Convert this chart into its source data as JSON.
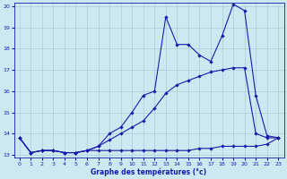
{
  "background_color": "#cce8f0",
  "grid_color": "#b0cdd8",
  "line_color": "#1a1aaa",
  "xlabel": "Graphe des températures (°c)",
  "xlim": [
    -0.5,
    23.5
  ],
  "ylim": [
    12.85,
    20.15
  ],
  "yticks": [
    13,
    14,
    15,
    16,
    17,
    18,
    19,
    20
  ],
  "xticks": [
    0,
    1,
    2,
    3,
    4,
    5,
    6,
    7,
    8,
    9,
    10,
    11,
    12,
    13,
    14,
    15,
    16,
    17,
    18,
    19,
    20,
    21,
    22,
    23
  ],
  "line_min_x": [
    0,
    1,
    2,
    3,
    4,
    5,
    6,
    7,
    8,
    9,
    10,
    11,
    12,
    13,
    14,
    15,
    16,
    17,
    18,
    19,
    20,
    21,
    22,
    23
  ],
  "line_min_y": [
    13.8,
    13.1,
    13.2,
    13.2,
    13.1,
    13.1,
    13.2,
    13.2,
    13.2,
    13.2,
    13.2,
    13.2,
    13.2,
    13.2,
    13.2,
    13.2,
    13.3,
    13.3,
    13.4,
    13.4,
    13.4,
    13.4,
    13.5,
    13.8
  ],
  "line_max_x": [
    0,
    1,
    2,
    3,
    4,
    5,
    6,
    7,
    8,
    9,
    10,
    11,
    12,
    13,
    14,
    15,
    16,
    17,
    18,
    19,
    20,
    21,
    22,
    23
  ],
  "line_max_y": [
    13.8,
    13.1,
    13.2,
    13.2,
    13.1,
    13.1,
    13.2,
    13.4,
    13.7,
    14.0,
    14.3,
    14.6,
    15.2,
    15.9,
    16.3,
    16.5,
    16.7,
    16.9,
    17.0,
    17.1,
    17.1,
    14.0,
    13.8,
    13.8
  ],
  "line_cur_x": [
    0,
    1,
    2,
    3,
    4,
    5,
    6,
    7,
    8,
    9,
    10,
    11,
    12,
    13,
    14,
    15,
    16,
    17,
    18,
    19,
    20,
    21,
    22,
    23
  ],
  "line_cur_y": [
    13.8,
    13.1,
    13.2,
    13.2,
    13.1,
    13.1,
    13.2,
    13.4,
    14.0,
    14.3,
    15.0,
    15.8,
    16.0,
    19.5,
    18.2,
    18.2,
    17.7,
    17.4,
    18.6,
    20.1,
    19.8,
    15.8,
    13.9,
    13.8
  ]
}
